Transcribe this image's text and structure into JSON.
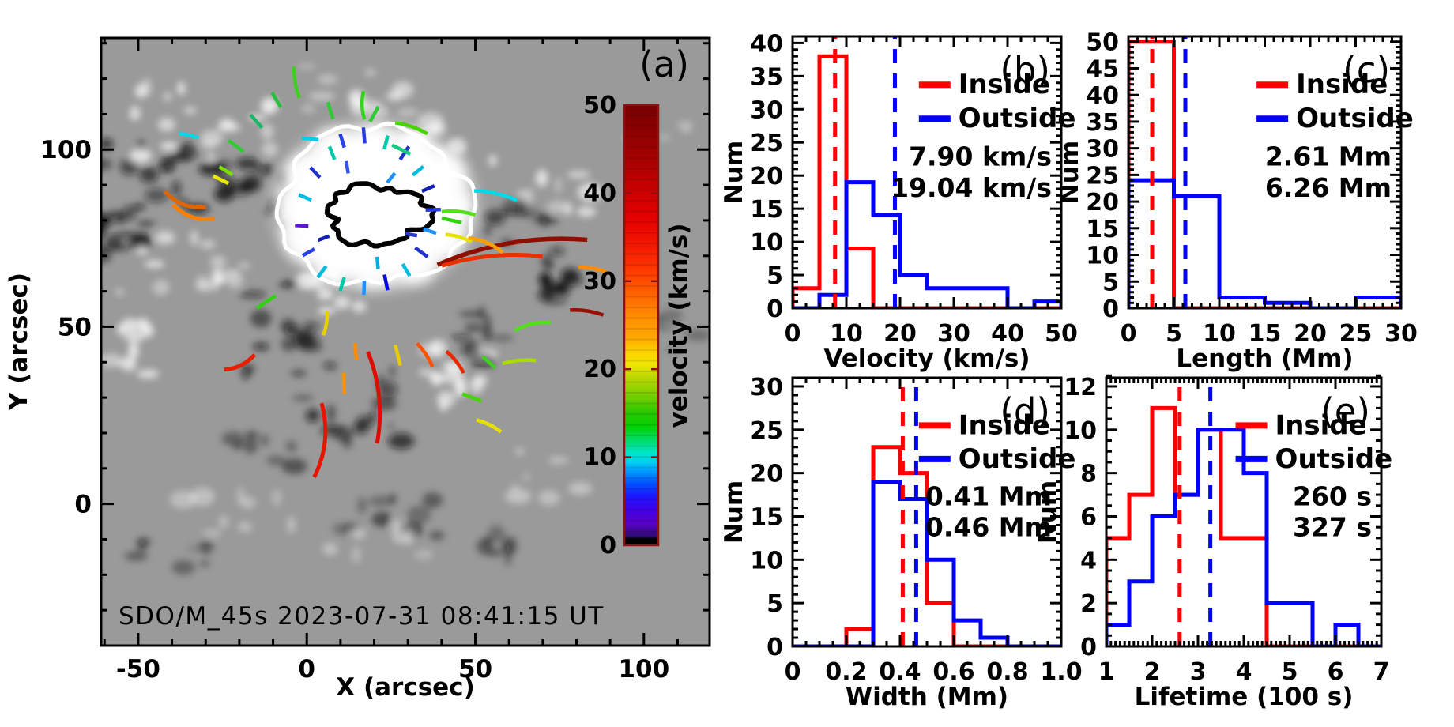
{
  "figure": {
    "panel_a": {
      "label": "(a)",
      "xlabel": "X (arcsec)",
      "ylabel": "Y (arcsec)",
      "caption": "SDO/M_45s 2023-07-31 08:41:15 UT",
      "xlim": [
        -61,
        119.5
      ],
      "ylim": [
        -40,
        131.5
      ],
      "xticks": [
        -50,
        0,
        50,
        100
      ],
      "xtick_labels": [
        "-50",
        "0",
        "50",
        "100"
      ],
      "yticks": [
        0,
        50,
        100
      ],
      "ytick_labels": [
        "0",
        "50",
        "100"
      ],
      "background_gray": "#9a9a9a",
      "contours": {
        "outer_color": "#ffffff",
        "inner_color": "#000000"
      },
      "colorbar": {
        "label": "velocity (km/s)",
        "range": [
          0,
          50
        ],
        "ticks": [
          0,
          10,
          20,
          30,
          40,
          50
        ],
        "tick_labels": [
          "0",
          "10",
          "20",
          "30",
          "40",
          "50"
        ],
        "text_color": "#8e1010",
        "stops": [
          [
            0.0,
            "#000000"
          ],
          [
            0.015,
            "#000000"
          ],
          [
            0.02,
            "#2d0b6e"
          ],
          [
            0.05,
            "#5a00c8"
          ],
          [
            0.08,
            "#4100e6"
          ],
          [
            0.11,
            "#1e14ff"
          ],
          [
            0.14,
            "#0050ff"
          ],
          [
            0.17,
            "#00a0ff"
          ],
          [
            0.19,
            "#00d2f0"
          ],
          [
            0.21,
            "#00e6c8"
          ],
          [
            0.24,
            "#00dc64"
          ],
          [
            0.27,
            "#00d200"
          ],
          [
            0.3,
            "#28c800"
          ],
          [
            0.33,
            "#64cd00"
          ],
          [
            0.36,
            "#99d200"
          ],
          [
            0.39,
            "#c8dc00"
          ],
          [
            0.41,
            "#f0e600"
          ],
          [
            0.44,
            "#ffd200"
          ],
          [
            0.47,
            "#ffaa00"
          ],
          [
            0.52,
            "#ff8c00"
          ],
          [
            0.57,
            "#ff6400"
          ],
          [
            0.62,
            "#ff3c00"
          ],
          [
            0.68,
            "#f51800"
          ],
          [
            0.74,
            "#e60000"
          ],
          [
            0.8,
            "#cd0000"
          ],
          [
            0.87,
            "#aa0000"
          ],
          [
            0.94,
            "#8c0000"
          ],
          [
            1.0,
            "#780000"
          ]
        ]
      },
      "tracks_format": [
        "x_arcsec",
        "y_arcsec",
        "angle_deg",
        "length_arcsec",
        "color",
        "curvature",
        "width_px"
      ],
      "tracks": [
        [
          17,
          104,
          95,
          4.5,
          "#2a3bdd",
          0
        ],
        [
          23.5,
          102,
          75,
          4,
          "#00c9a7",
          0
        ],
        [
          10.5,
          102.5,
          108,
          4,
          "#2742e6",
          0
        ],
        [
          29,
          99,
          55,
          4.5,
          "#2233cc",
          0
        ],
        [
          33,
          94,
          38,
          4,
          "#00bde0",
          0
        ],
        [
          36,
          89,
          22,
          4,
          "#1520b8",
          0
        ],
        [
          37.5,
          83,
          2,
          4.5,
          "#2a3bdd",
          0
        ],
        [
          36.5,
          77,
          -18,
          4,
          "#1e90ff",
          0
        ],
        [
          34,
          71,
          -35,
          4.5,
          "#2233cc",
          0
        ],
        [
          29.5,
          66,
          -58,
          4,
          "#00bde0",
          0
        ],
        [
          23.5,
          62.5,
          -78,
          4.5,
          "#0a0adf",
          0
        ],
        [
          17,
          61,
          -92,
          4,
          "#1e90ff",
          0
        ],
        [
          10.5,
          62,
          -108,
          4,
          "#00c9a7",
          0
        ],
        [
          4.5,
          65.5,
          -128,
          4,
          "#00bde0",
          0
        ],
        [
          0.5,
          71,
          -152,
          4,
          "#2742e6",
          0
        ],
        [
          -1.5,
          78.5,
          178,
          4,
          "#5a18cc",
          0
        ],
        [
          -0.5,
          86.5,
          158,
          4,
          "#00bde0",
          0
        ],
        [
          2.5,
          93.5,
          135,
          4,
          "#2233cc",
          0
        ],
        [
          7.5,
          99,
          112,
          4,
          "#00c9a7",
          0
        ],
        [
          12,
          95,
          100,
          3.5,
          "#3355ee",
          0
        ],
        [
          25,
          92,
          50,
          3.5,
          "#1e90ff",
          0
        ],
        [
          21,
          68,
          -85,
          3.5,
          "#00ace0",
          0
        ],
        [
          31,
          76,
          -10,
          3.5,
          "#2a3bdd",
          0
        ],
        [
          5,
          75,
          -160,
          3.5,
          "#1520b8",
          0
        ],
        [
          17,
          112.5,
          92,
          8,
          "#35d41c",
          0.15
        ],
        [
          7,
          111,
          108,
          5,
          "#2fca35",
          0
        ],
        [
          -3,
          119,
          100,
          9,
          "#3ed01e",
          0.1
        ],
        [
          -9,
          114,
          122,
          5,
          "#2abf3f",
          0
        ],
        [
          -15,
          108,
          133,
          5,
          "#18b868",
          0
        ],
        [
          -21,
          101,
          145,
          5.5,
          "#2fca35",
          0
        ],
        [
          20,
          110,
          60,
          5,
          "#2fca35",
          0
        ],
        [
          31,
          106,
          -18,
          10,
          "#46d400",
          0.1
        ],
        [
          28,
          100,
          -25,
          6,
          "#14c87d",
          0
        ],
        [
          -35,
          104,
          168,
          6,
          "#00d9e8",
          0
        ],
        [
          1,
          103,
          175,
          5,
          "#00cfe8",
          0
        ],
        [
          -24,
          94,
          150,
          4.5,
          "#7ade00",
          0
        ],
        [
          -25.5,
          91.5,
          155,
          5,
          "#e8e800",
          0
        ],
        [
          -36,
          86,
          160,
          13,
          "#e06400",
          0.25,
          5
        ],
        [
          -33.5,
          82.5,
          162,
          13,
          "#ff7f00",
          0.25,
          5
        ],
        [
          -12,
          57,
          -148,
          6.5,
          "#2fd40f",
          0
        ],
        [
          -20,
          40,
          205,
          10,
          "#e81e00",
          0.2,
          5
        ],
        [
          5.5,
          51,
          -100,
          7,
          "#e8d000",
          0.1
        ],
        [
          3.3,
          18,
          -96,
          21,
          "#e81400",
          0.2,
          5
        ],
        [
          19.5,
          30,
          -84,
          26,
          "#dd0e00",
          0.15,
          5
        ],
        [
          11,
          34,
          -88,
          6,
          "#ff9100",
          0
        ],
        [
          14.5,
          43,
          -85,
          5,
          "#ff8c00",
          0
        ],
        [
          27,
          42,
          -75,
          6,
          "#e8cc00",
          0
        ],
        [
          35,
          42,
          -55,
          8,
          "#ff5000",
          0.1
        ],
        [
          44,
          40,
          -50,
          8,
          "#e82800",
          0.1
        ],
        [
          54,
          40,
          -40,
          5,
          "#3ed01e",
          0
        ],
        [
          49,
          30,
          -20,
          6,
          "#46d400",
          0
        ],
        [
          54,
          22,
          -25,
          8,
          "#e8e000",
          0.1
        ],
        [
          67,
          50,
          12,
          11,
          "#52e01c",
          0.15
        ],
        [
          63,
          40,
          5,
          10,
          "#aadc00",
          0.1
        ],
        [
          61,
          71,
          9,
          45,
          "#8e0e00",
          0.12,
          5.5
        ],
        [
          55,
          68.5,
          5,
          30,
          "#e83000",
          0.1,
          5
        ],
        [
          85,
          66,
          -10,
          9,
          "#ff8c00",
          0.1
        ],
        [
          83,
          54,
          -8,
          10,
          "#960f00",
          0.1
        ],
        [
          45,
          82,
          -5,
          10,
          "#52e01c",
          0.1
        ],
        [
          43,
          80,
          -12,
          6,
          "#2fd40f",
          0
        ],
        [
          45,
          75,
          -15,
          8,
          "#e8e000",
          0.1
        ],
        [
          53,
          73,
          -22,
          11,
          "#ffa000",
          0.15
        ],
        [
          56,
          87,
          -12,
          13,
          "#00d9e8",
          0.1
        ]
      ]
    }
  },
  "chart_data": [
    {
      "id": "b",
      "type": "histogram",
      "panel_label": "(b)",
      "xlabel": "Velocity (km/s)",
      "ylabel": "Num",
      "xlim": [
        0,
        50
      ],
      "ylim": [
        0,
        41
      ],
      "xticks": [
        0,
        10,
        20,
        30,
        40,
        50
      ],
      "xtick_labels": [
        "0",
        "10",
        "20",
        "30",
        "40",
        "50"
      ],
      "yticks": [
        0,
        5,
        10,
        15,
        20,
        25,
        30,
        35,
        40
      ],
      "ytick_labels": [
        "0",
        "5",
        "10",
        "15",
        "20",
        "25",
        "30",
        "35",
        "40"
      ],
      "bin_start": 0,
      "bin_width": 5,
      "series": [
        {
          "name": "Inside",
          "color": "#ff0000",
          "counts": [
            3,
            38,
            9,
            0,
            0,
            0,
            0,
            0,
            0,
            0
          ],
          "mean": 7.9,
          "mean_label": "7.90 km/s"
        },
        {
          "name": "Outside",
          "color": "#0000ff",
          "counts": [
            0,
            2,
            19,
            14,
            5,
            3,
            3,
            3,
            0,
            1
          ],
          "mean": 19.04,
          "mean_label": "19.04 km/s"
        }
      ]
    },
    {
      "id": "c",
      "type": "histogram",
      "panel_label": "(c)",
      "xlabel": "Length (Mm)",
      "ylabel": "Num",
      "xlim": [
        0,
        30
      ],
      "ylim": [
        0,
        51
      ],
      "xticks": [
        0,
        5,
        10,
        15,
        20,
        25,
        30
      ],
      "xtick_labels": [
        "0",
        "5",
        "10",
        "15",
        "20",
        "25",
        "30"
      ],
      "yticks": [
        0,
        5,
        10,
        15,
        20,
        25,
        30,
        35,
        40,
        45,
        50
      ],
      "ytick_labels": [
        "0",
        "5",
        "10",
        "15",
        "20",
        "25",
        "30",
        "35",
        "40",
        "45",
        "50"
      ],
      "bin_start": 0,
      "bin_width": 5,
      "series": [
        {
          "name": "Inside",
          "color": "#ff0000",
          "counts": [
            50,
            0,
            0,
            0,
            0,
            0
          ],
          "mean": 2.61,
          "mean_label": "2.61 Mm"
        },
        {
          "name": "Outside",
          "color": "#0000ff",
          "counts": [
            24,
            21,
            2,
            1,
            0,
            2
          ],
          "mean": 6.26,
          "mean_label": "6.26 Mm"
        }
      ]
    },
    {
      "id": "d",
      "type": "histogram",
      "panel_label": "(d)",
      "xlabel": "Width (Mm)",
      "ylabel": "Num",
      "xlim": [
        0,
        1.0
      ],
      "ylim": [
        0,
        31
      ],
      "xticks": [
        0,
        0.2,
        0.4,
        0.6,
        0.8,
        1.0
      ],
      "xtick_labels": [
        "0",
        "0.2",
        "0.4",
        "0.6",
        "0.8",
        "1.0"
      ],
      "yticks": [
        0,
        5,
        10,
        15,
        20,
        25,
        30
      ],
      "ytick_labels": [
        "0",
        "5",
        "10",
        "15",
        "20",
        "25",
        "30"
      ],
      "bin_start": 0,
      "bin_width": 0.1,
      "series": [
        {
          "name": "Inside",
          "color": "#ff0000",
          "counts": [
            0,
            0,
            2,
            23,
            20,
            5,
            0,
            0,
            0,
            0
          ],
          "mean": 0.41,
          "mean_label": "0.41 Mm"
        },
        {
          "name": "Outside",
          "color": "#0000ff",
          "counts": [
            0,
            0,
            0,
            19,
            17,
            10,
            3,
            1,
            0,
            0
          ],
          "mean": 0.46,
          "mean_label": "0.46 Mm"
        }
      ]
    },
    {
      "id": "e",
      "type": "histogram",
      "panel_label": "(e)",
      "xlabel": "Lifetime (100 s)",
      "ylabel": "Num",
      "xlim": [
        1,
        7
      ],
      "ylim": [
        0,
        12.4
      ],
      "xticks": [
        1,
        2,
        3,
        4,
        5,
        6,
        7
      ],
      "xtick_labels": [
        "1",
        "2",
        "3",
        "4",
        "5",
        "6",
        "7"
      ],
      "yticks": [
        0,
        2,
        4,
        6,
        8,
        10,
        12
      ],
      "ytick_labels": [
        "0",
        "2",
        "4",
        "6",
        "8",
        "10",
        "12"
      ],
      "bin_start": 1,
      "bin_width": 0.5,
      "series": [
        {
          "name": "Inside",
          "color": "#ff0000",
          "counts": [
            5,
            7,
            11,
            7,
            10,
            5,
            5,
            0,
            0,
            0,
            0,
            0
          ],
          "mean": 2.6,
          "mean_label": "260 s"
        },
        {
          "name": "Outside",
          "color": "#0000ff",
          "counts": [
            1,
            3,
            6,
            7,
            10,
            10,
            8,
            2,
            2,
            0,
            1,
            0
          ],
          "mean": 3.27,
          "mean_label": "327 s"
        }
      ]
    }
  ],
  "legend": {
    "inside_label": "Inside",
    "outside_label": "Outside",
    "inside_color": "#ff0000",
    "outside_color": "#0000ff"
  }
}
